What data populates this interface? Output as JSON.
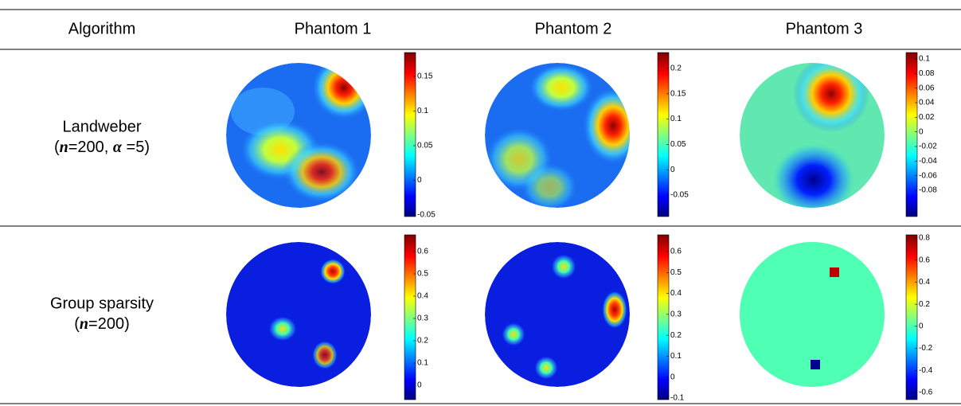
{
  "table": {
    "header": [
      "Algorithm",
      "Phantom 1",
      "Phantom 2",
      "Phantom 3"
    ],
    "rows": [
      {
        "method": "Landweber",
        "params": [
          "(",
          "n",
          "=200, ",
          "α",
          " =5)"
        ],
        "colorbars": [
          [
            "-0.05",
            "0",
            "0.05",
            "0.1",
            "0.15"
          ],
          [
            "-0.05",
            "0",
            "0.05",
            "0.1",
            "0.15",
            "0.2"
          ],
          [
            "-0.08",
            "-0.06",
            "-0.04",
            "-0.02",
            "0",
            "0.02",
            "0.04",
            "0.06",
            "0.08",
            "0.1"
          ]
        ]
      },
      {
        "method": "Group sparsity",
        "params": [
          "(",
          "n",
          "=200)"
        ],
        "colorbars": [
          [
            "0",
            "0.1",
            "0.2",
            "0.3",
            "0.4",
            "0.5",
            "0.6"
          ],
          [
            "-0.1",
            "0",
            "0.1",
            "0.2",
            "0.3",
            "0.4",
            "0.5",
            "0.6"
          ],
          [
            "-0.6",
            "-0.4",
            "-0.2",
            "0",
            "0.2",
            "0.4",
            "0.6",
            "0.8"
          ]
        ]
      }
    ]
  }
}
